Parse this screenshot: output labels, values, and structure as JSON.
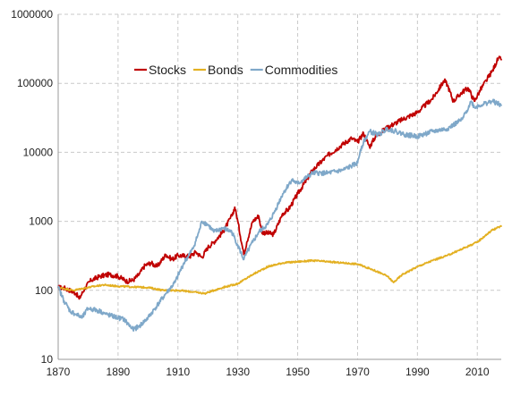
{
  "chart_data": {
    "type": "line",
    "title": "",
    "xlabel": "",
    "ylabel": "",
    "y_scale": "log",
    "xlim": [
      1870,
      2018
    ],
    "ylim": [
      10,
      1000000
    ],
    "grid": true,
    "legend_placement": "top-left",
    "x_ticks": [
      "1870",
      "1890",
      "1910",
      "1930",
      "1950",
      "1970",
      "1990",
      "2010"
    ],
    "y_ticks": [
      "10",
      "100",
      "1000",
      "10000",
      "100000",
      "1000000"
    ],
    "series": [
      {
        "name": "Stocks",
        "color": "#c00000",
        "x": [
          1870,
          1872,
          1874,
          1876,
          1877,
          1879,
          1881,
          1884,
          1887,
          1890,
          1893,
          1895,
          1897,
          1899,
          1901,
          1903,
          1906,
          1908,
          1910,
          1914,
          1916,
          1918,
          1920,
          1922,
          1925,
          1928,
          1929,
          1930,
          1932,
          1933,
          1935,
          1937,
          1938,
          1942,
          1945,
          1947,
          1950,
          1955,
          1960,
          1965,
          1968,
          1970,
          1972,
          1974,
          1976,
          1980,
          1985,
          1990,
          1995,
          1999,
          2000,
          2002,
          2005,
          2007,
          2009,
          2011,
          2013,
          2015,
          2017,
          2018
        ],
        "values": [
          110,
          108,
          100,
          90,
          75,
          110,
          140,
          160,
          170,
          160,
          135,
          140,
          170,
          230,
          250,
          220,
          330,
          280,
          320,
          310,
          360,
          300,
          420,
          500,
          700,
          1200,
          1600,
          1000,
          330,
          500,
          1000,
          1200,
          700,
          650,
          1300,
          1500,
          2500,
          5500,
          9000,
          13000,
          16000,
          14000,
          19000,
          12000,
          17000,
          23000,
          30000,
          38000,
          60000,
          110000,
          95000,
          55000,
          75000,
          85000,
          55000,
          80000,
          110000,
          150000,
          230000,
          220000
        ]
      },
      {
        "name": "Bonds",
        "color": "#e3b022",
        "x": [
          1870,
          1875,
          1880,
          1885,
          1890,
          1895,
          1900,
          1905,
          1910,
          1915,
          1919,
          1922,
          1925,
          1930,
          1935,
          1940,
          1945,
          1950,
          1955,
          1960,
          1965,
          1970,
          1975,
          1980,
          1982,
          1985,
          1990,
          1995,
          2000,
          2005,
          2010,
          2015,
          2018
        ],
        "values": [
          110,
          100,
          110,
          120,
          115,
          112,
          110,
          100,
          100,
          95,
          90,
          100,
          110,
          125,
          170,
          220,
          250,
          260,
          270,
          260,
          250,
          240,
          200,
          160,
          130,
          170,
          220,
          270,
          320,
          400,
          500,
          750,
          850
        ]
      },
      {
        "name": "Commodities",
        "color": "#7fa8c9",
        "x": [
          1870,
          1872,
          1874,
          1876,
          1878,
          1880,
          1884,
          1886,
          1890,
          1892,
          1895,
          1897,
          1900,
          1903,
          1906,
          1909,
          1912,
          1915,
          1917,
          1918,
          1920,
          1922,
          1925,
          1928,
          1930,
          1932,
          1933,
          1935,
          1937,
          1940,
          1942,
          1945,
          1948,
          1950,
          1955,
          1960,
          1965,
          1970,
          1971,
          1972,
          1974,
          1977,
          1980,
          1983,
          1986,
          1990,
          1995,
          2000,
          2005,
          2008,
          2009,
          2012,
          2015,
          2018
        ],
        "values": [
          110,
          70,
          50,
          45,
          40,
          55,
          50,
          45,
          40,
          38,
          27,
          30,
          40,
          60,
          90,
          130,
          250,
          400,
          700,
          1000,
          900,
          700,
          800,
          700,
          450,
          280,
          350,
          500,
          700,
          900,
          1300,
          2500,
          4000,
          3500,
          5000,
          5000,
          5500,
          7000,
          11000,
          14000,
          20000,
          18000,
          22000,
          20000,
          18000,
          17000,
          20000,
          22000,
          30000,
          55000,
          45000,
          50000,
          55000,
          48000
        ]
      }
    ]
  }
}
